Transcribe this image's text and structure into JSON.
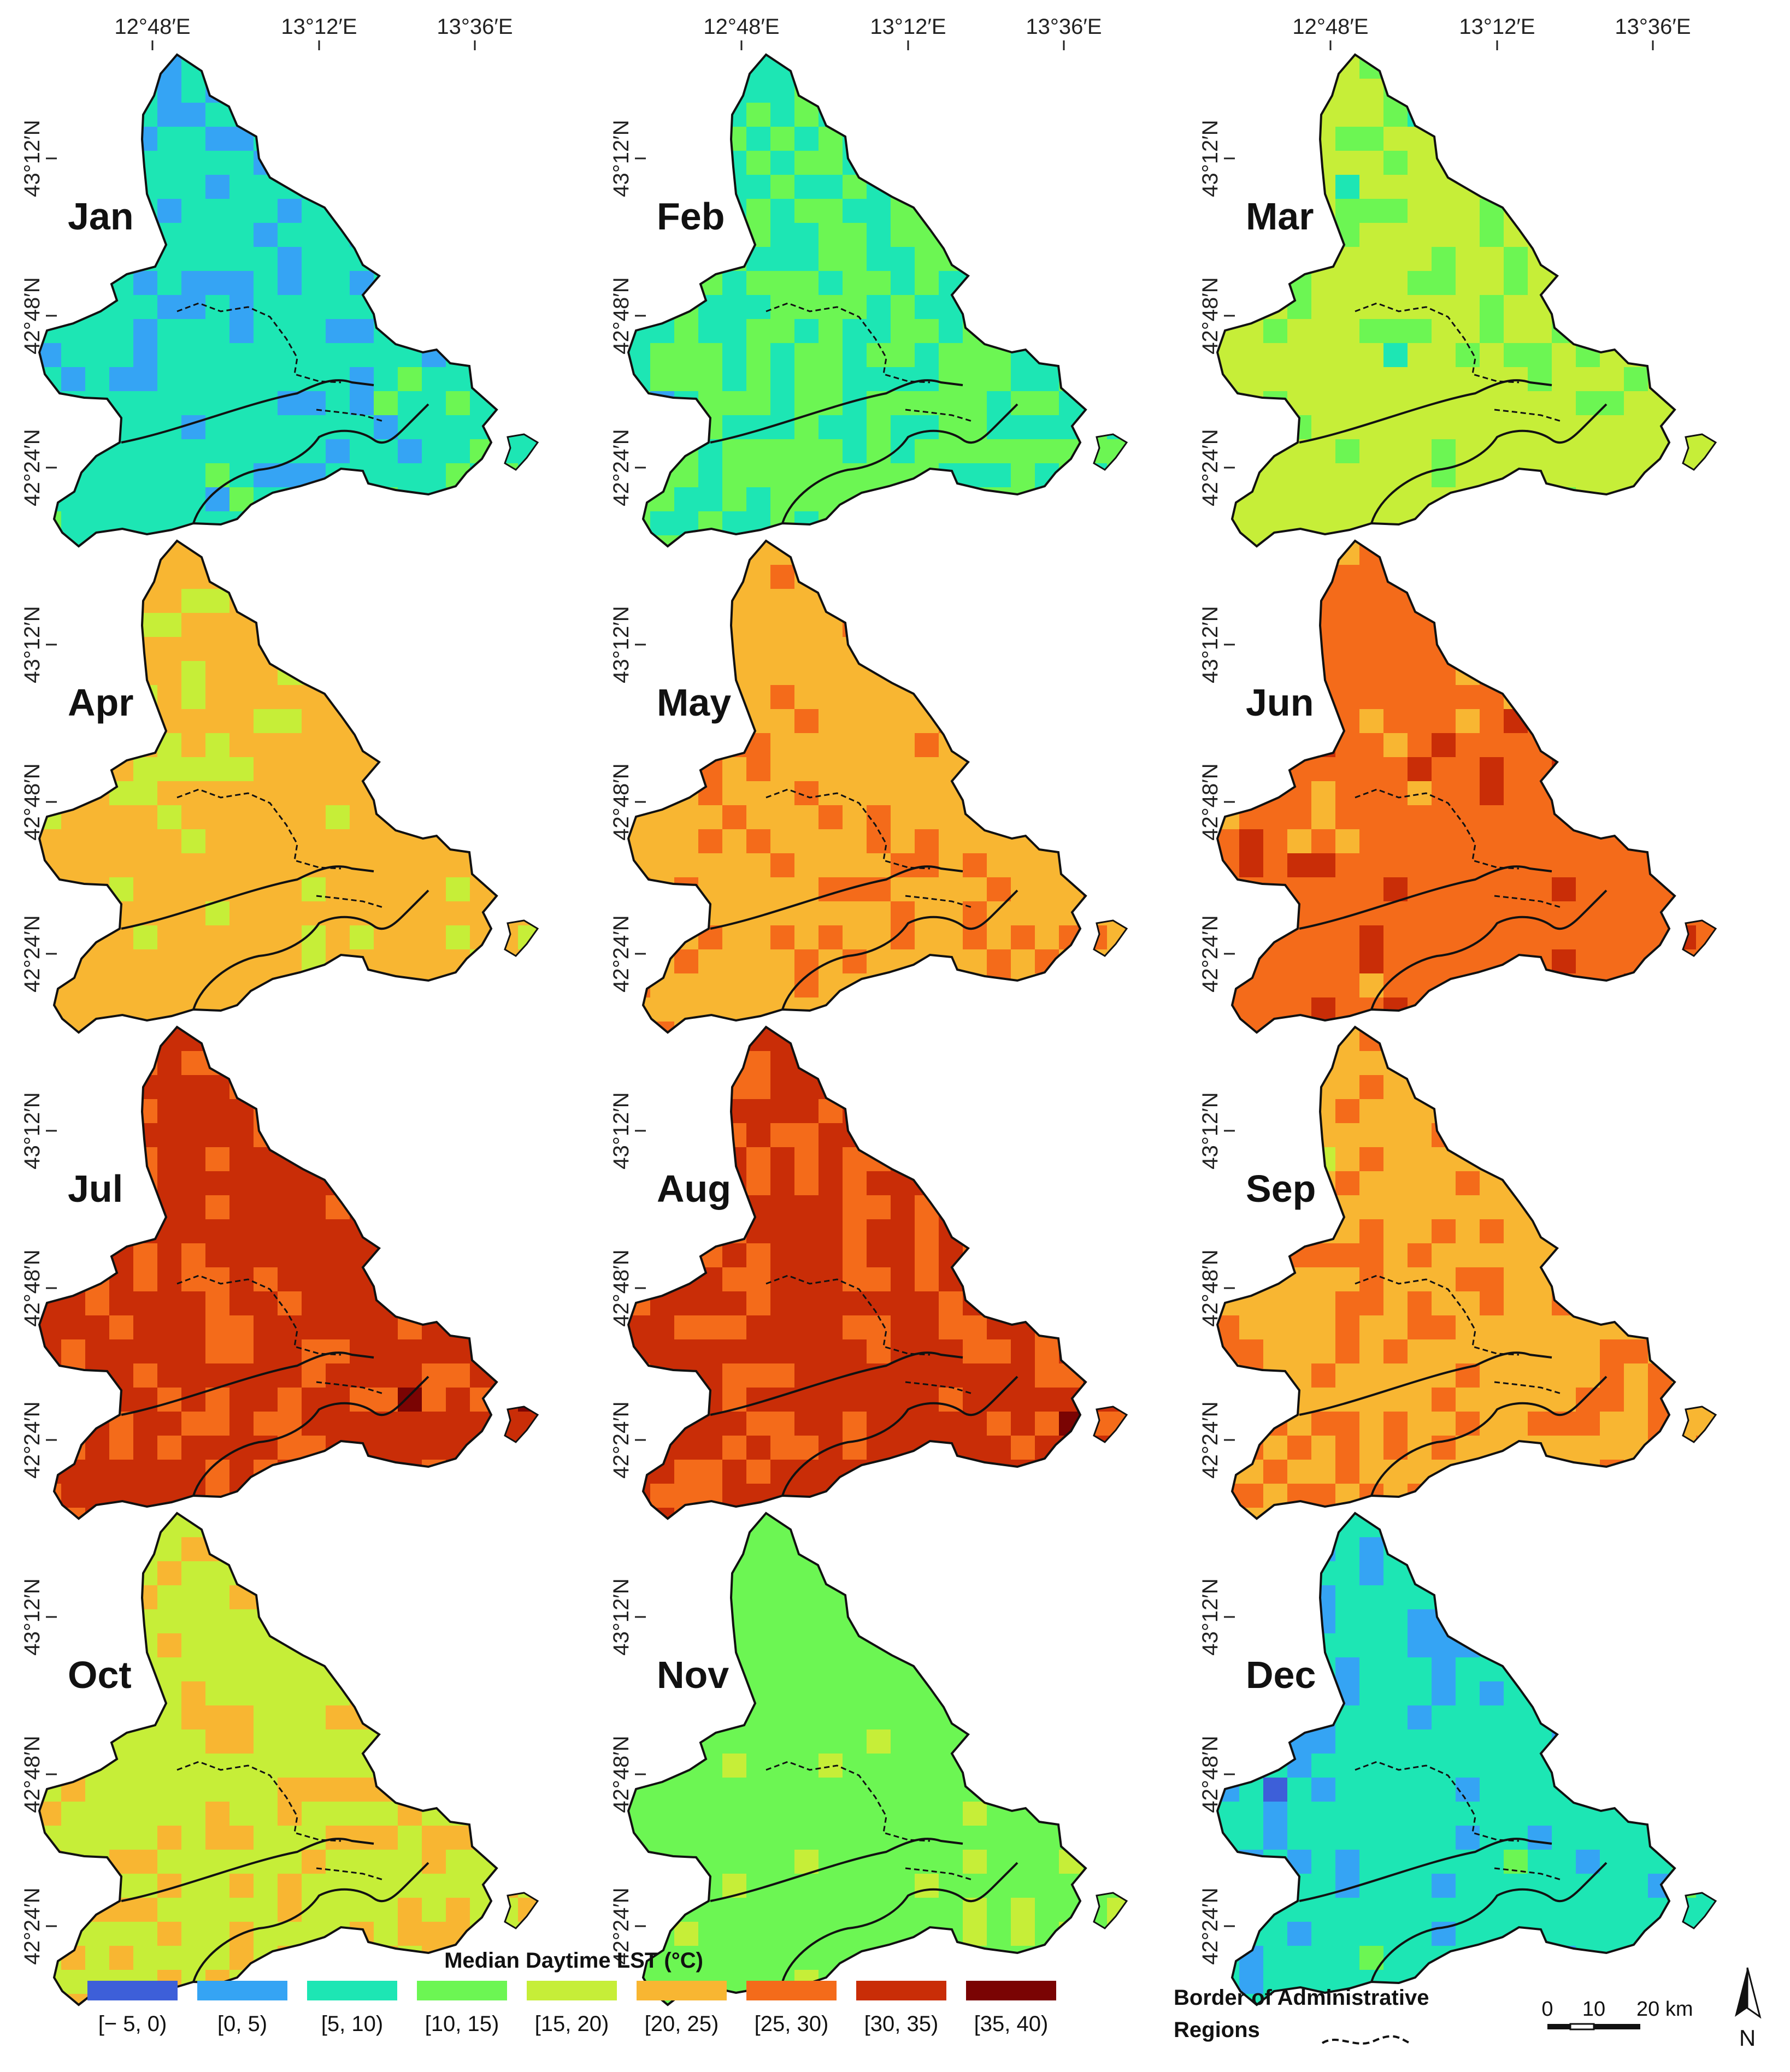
{
  "legend": {
    "title": "Median Daytime LST (°C)",
    "classes": [
      {
        "label": "[− 5, 0)",
        "color": "#3d5fd9"
      },
      {
        "label": "[0, 5)",
        "color": "#35a4f4"
      },
      {
        "label": "[5, 10)",
        "color": "#1de6b4"
      },
      {
        "label": "[10, 15)",
        "color": "#6cf653"
      },
      {
        "label": "[15, 20)",
        "color": "#c6ee38"
      },
      {
        "label": "[20, 25)",
        "color": "#f8b632"
      },
      {
        "label": "[25, 30)",
        "color": "#f46b1a"
      },
      {
        "label": "[30, 35)",
        "color": "#c92d07"
      },
      {
        "label": "[35, 40)",
        "color": "#7a0403"
      }
    ]
  },
  "border_legend": {
    "line1": "Border of Administrative",
    "line2": "Regions"
  },
  "scale_bar": {
    "zero": "0",
    "mid": "10",
    "end": "20 km"
  },
  "north_arrow": {
    "label": "N"
  },
  "graticule": {
    "lon": [
      "12°48′E",
      "13°12′E",
      "13°36′E"
    ],
    "lat": [
      "43°12′N",
      "42°48′N",
      "42°24′N"
    ]
  },
  "panels": [
    {
      "month": "Jan",
      "class_weights": [
        0.05,
        0.22,
        0.6,
        0.13,
        0,
        0,
        0,
        0,
        0
      ]
    },
    {
      "month": "Feb",
      "class_weights": [
        0.01,
        0.08,
        0.31,
        0.6,
        0,
        0,
        0,
        0,
        0
      ]
    },
    {
      "month": "Mar",
      "class_weights": [
        0,
        0.02,
        0.04,
        0.16,
        0.77,
        0.01,
        0,
        0,
        0
      ]
    },
    {
      "month": "Apr",
      "class_weights": [
        0,
        0,
        0.01,
        0.05,
        0.12,
        0.82,
        0,
        0,
        0
      ]
    },
    {
      "month": "May",
      "class_weights": [
        0,
        0,
        0,
        0,
        0.02,
        0.68,
        0.3,
        0,
        0
      ]
    },
    {
      "month": "Jun",
      "class_weights": [
        0,
        0,
        0,
        0,
        0,
        0.14,
        0.66,
        0.2,
        0
      ]
    },
    {
      "month": "Jul",
      "class_weights": [
        0,
        0,
        0,
        0,
        0,
        0.02,
        0.26,
        0.6,
        0.12
      ]
    },
    {
      "month": "Aug",
      "class_weights": [
        0,
        0,
        0,
        0,
        0,
        0.03,
        0.3,
        0.57,
        0.1
      ]
    },
    {
      "month": "Sep",
      "class_weights": [
        0,
        0,
        0,
        0,
        0.04,
        0.58,
        0.38,
        0,
        0
      ]
    },
    {
      "month": "Oct",
      "class_weights": [
        0,
        0,
        0,
        0.01,
        0.6,
        0.39,
        0,
        0,
        0
      ]
    },
    {
      "month": "Nov",
      "class_weights": [
        0,
        0,
        0.05,
        0.75,
        0.2,
        0,
        0,
        0,
        0
      ]
    },
    {
      "month": "Dec",
      "class_weights": [
        0.04,
        0.18,
        0.66,
        0.12,
        0,
        0,
        0,
        0,
        0
      ]
    }
  ]
}
